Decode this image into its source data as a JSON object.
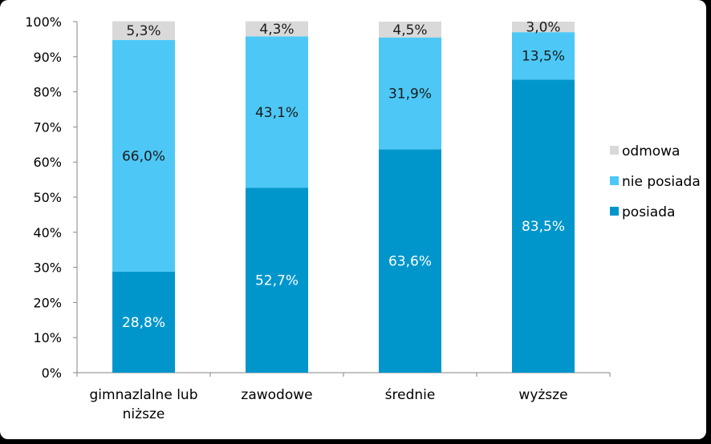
{
  "chart_data": {
    "type": "bar",
    "stacked": true,
    "percent": true,
    "categories": [
      [
        "gimnazlalne lub",
        "niższe"
      ],
      [
        "zawodowe"
      ],
      [
        "średnie"
      ],
      [
        "wyższe"
      ]
    ],
    "series": [
      {
        "name": "posiada",
        "color": "#0096cc",
        "label_color": "#ffffff",
        "values": [
          28.8,
          52.7,
          63.6,
          83.5
        ],
        "labels": [
          "28,8%",
          "52,7%",
          "63,6%",
          "83,5%"
        ]
      },
      {
        "name": "nie posiada",
        "color": "#4dc8f6",
        "label_color": "#1a1a1a",
        "values": [
          66.0,
          43.1,
          31.9,
          13.5
        ],
        "labels": [
          "66,0%",
          "43,1%",
          "31,9%",
          "13,5%"
        ]
      },
      {
        "name": "odmowa",
        "color": "#d9d9d9",
        "label_color": "#1a1a1a",
        "values": [
          5.3,
          4.3,
          4.5,
          3.0
        ],
        "labels": [
          "5,3%",
          "4,3%",
          "4,5%",
          "3,0%"
        ]
      }
    ],
    "ylim": [
      0,
      100
    ],
    "yticks": [
      "0%",
      "10%",
      "20%",
      "30%",
      "40%",
      "50%",
      "60%",
      "70%",
      "80%",
      "90%",
      "100%"
    ],
    "legend": [
      "odmowa",
      "nie posiada",
      "posiada"
    ],
    "legend_position": "right",
    "grid": false
  }
}
